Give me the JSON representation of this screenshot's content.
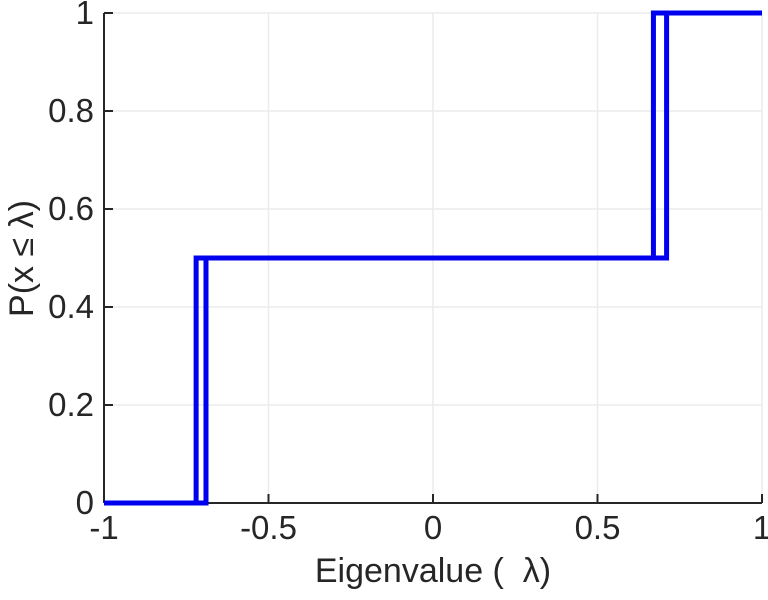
{
  "chart_data": {
    "type": "line",
    "subtype": "empirical-cdf-step",
    "title": "",
    "xlabel": "Eigenvalue (  λ)",
    "ylabel": "P(x ≤ λ)",
    "xlim": [
      -1,
      1
    ],
    "ylim": [
      0,
      1
    ],
    "grid": true,
    "legend": "none",
    "xticks": {
      "values": [
        -1,
        -0.5,
        0,
        0.5,
        1
      ],
      "labels": [
        "-1",
        "-0.5",
        "0",
        "0.5",
        "1"
      ]
    },
    "yticks": {
      "values": [
        0,
        0.2,
        0.4,
        0.6,
        0.8,
        1
      ],
      "labels": [
        "0",
        "0.2",
        "0.4",
        "0.6",
        "0.8",
        "1"
      ]
    },
    "series": [
      {
        "name": "ecdf-curve-1",
        "color": "#0000ee",
        "step_x": [
          -0.72,
          0.71
        ],
        "levels": [
          0,
          0.5,
          1
        ]
      },
      {
        "name": "ecdf-curve-2",
        "color": "#0000ee",
        "step_x": [
          -0.69,
          0.67
        ],
        "levels": [
          0,
          0.5,
          1
        ]
      }
    ],
    "colors": {
      "line": "#0000ee",
      "axis": "#262626",
      "grid": "#ececec",
      "tick_label": "#262626",
      "background": "#ffffff"
    }
  }
}
